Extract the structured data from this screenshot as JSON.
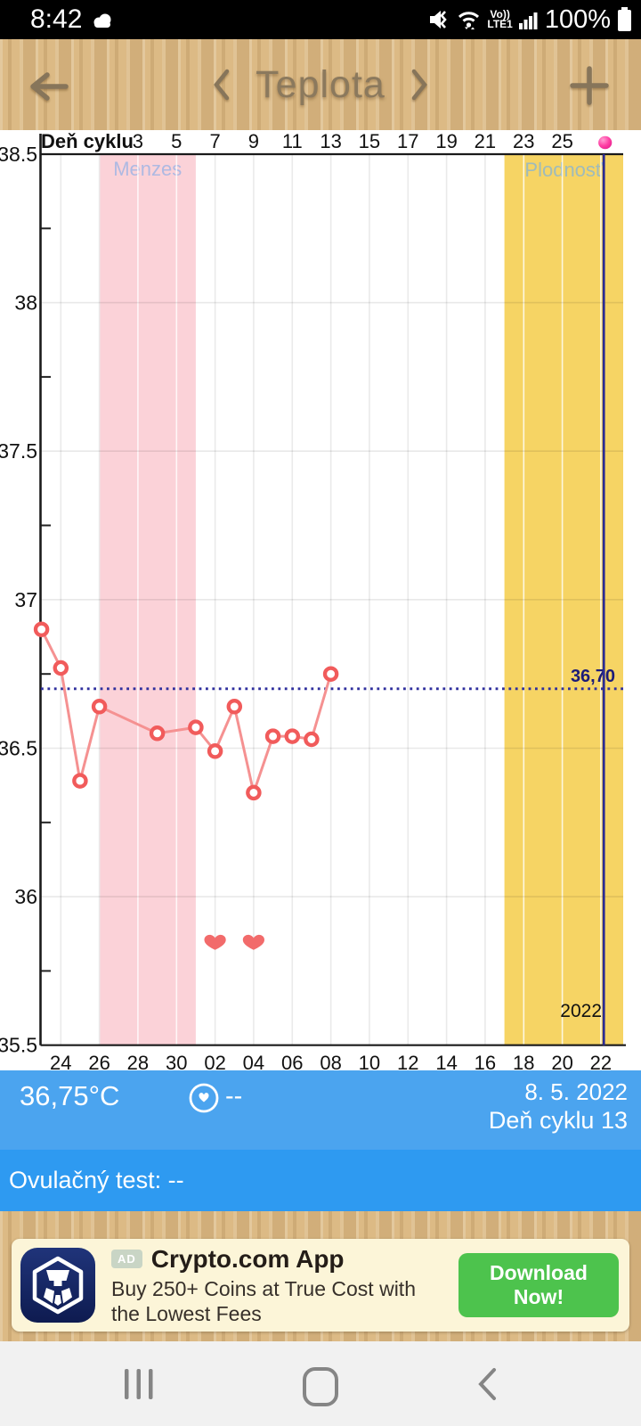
{
  "status_bar": {
    "time": "8:42",
    "battery": "100%",
    "volte1": "Vo))",
    "volte2": "LTE1"
  },
  "header": {
    "title": "Teplota"
  },
  "chart_data": {
    "type": "line",
    "title": "Teplota",
    "top_axis_label": "Deň cyklu",
    "cycle_day_ticks": [
      {
        "label": "3",
        "offset": 5
      },
      {
        "label": "5",
        "offset": 7
      },
      {
        "label": "7",
        "offset": 9
      },
      {
        "label": "9",
        "offset": 11
      },
      {
        "label": "11",
        "offset": 13
      },
      {
        "label": "13",
        "offset": 15
      },
      {
        "label": "15",
        "offset": 17
      },
      {
        "label": "17",
        "offset": 19
      },
      {
        "label": "19",
        "offset": 21
      },
      {
        "label": "21",
        "offset": 23
      },
      {
        "label": "23",
        "offset": 25
      },
      {
        "label": "25",
        "offset": 27
      }
    ],
    "x_date_ticks": [
      {
        "label": "24",
        "offset": 1
      },
      {
        "label": "26",
        "offset": 3
      },
      {
        "label": "28",
        "offset": 5
      },
      {
        "label": "30",
        "offset": 7
      },
      {
        "label": "02",
        "offset": 9
      },
      {
        "label": "04",
        "offset": 11
      },
      {
        "label": "06",
        "offset": 13
      },
      {
        "label": "08",
        "offset": 15
      },
      {
        "label": "10",
        "offset": 17
      },
      {
        "label": "12",
        "offset": 19
      },
      {
        "label": "14",
        "offset": 21
      },
      {
        "label": "16",
        "offset": 23
      },
      {
        "label": "18",
        "offset": 25
      },
      {
        "label": "20",
        "offset": 27
      },
      {
        "label": "22",
        "offset": 29
      }
    ],
    "y_ticks": [
      {
        "t": 38.5,
        "label": "38.5"
      },
      {
        "t": 38,
        "label": "38"
      },
      {
        "t": 37.5,
        "label": "37.5"
      },
      {
        "t": 37,
        "label": "37"
      },
      {
        "t": 36.5,
        "label": "36.5"
      },
      {
        "t": 36,
        "label": "36"
      },
      {
        "t": 35.5,
        "label": "35.5"
      }
    ],
    "ylim": [
      35.5,
      38.5
    ],
    "series": [
      {
        "name": "basal temperature",
        "points": [
          {
            "date": "23.4.",
            "offset": 0,
            "temp": 36.9
          },
          {
            "date": "24.4.",
            "offset": 1,
            "temp": 36.77
          },
          {
            "date": "25.4.",
            "offset": 2,
            "temp": 36.39
          },
          {
            "date": "26.4.",
            "offset": 3,
            "temp": 36.64
          },
          {
            "date": "29.4.",
            "offset": 6,
            "temp": 36.55
          },
          {
            "date": "1.5.",
            "offset": 8,
            "temp": 36.57
          },
          {
            "date": "2.5.",
            "offset": 9,
            "temp": 36.49
          },
          {
            "date": "3.5.",
            "offset": 10,
            "temp": 36.64
          },
          {
            "date": "4.5.",
            "offset": 11,
            "temp": 36.35
          },
          {
            "date": "5.5.",
            "offset": 12,
            "temp": 36.54
          },
          {
            "date": "6.5.",
            "offset": 13,
            "temp": 36.54
          },
          {
            "date": "7.5.",
            "offset": 14,
            "temp": 36.53
          },
          {
            "date": "8.5.",
            "offset": 15,
            "temp": 36.75
          }
        ]
      }
    ],
    "coverline": {
      "temp": 36.7,
      "label": "36,70"
    },
    "menses_band": {
      "label": "Menzes",
      "from_offset": 3,
      "to_offset": 8
    },
    "fertile_band": {
      "label": "Plodnosť",
      "from_offset": 24
    },
    "hearts": {
      "offsets": [
        9,
        11
      ]
    },
    "today_offset": 29.15,
    "year_label": "2022",
    "colors": {
      "line": "#f59191",
      "marker": "#f15b5b",
      "menses_band": "#fbd2d8",
      "menses_label": "#aeb9e2",
      "fertile_band": "#f6d464",
      "fertile_label": "#9fbbbb",
      "coverline": "#2f2f9d",
      "today_line": "#2b2b94",
      "heart": "#f26b6b",
      "dot": "#ff3fa4"
    }
  },
  "info_bar": {
    "temperature": "36,75°C",
    "intercourse_value": "--",
    "date": "8. 5. 2022",
    "cycle_day": "Deň cyklu 13"
  },
  "ovulation_bar": {
    "text": "Ovulačný test: --"
  },
  "ad": {
    "badge": "AD",
    "title": "Crypto.com App",
    "body_line1": "Buy 250+ Coins at True Cost with",
    "body_line2": "the Lowest Fees",
    "cta": "Download Now!"
  }
}
